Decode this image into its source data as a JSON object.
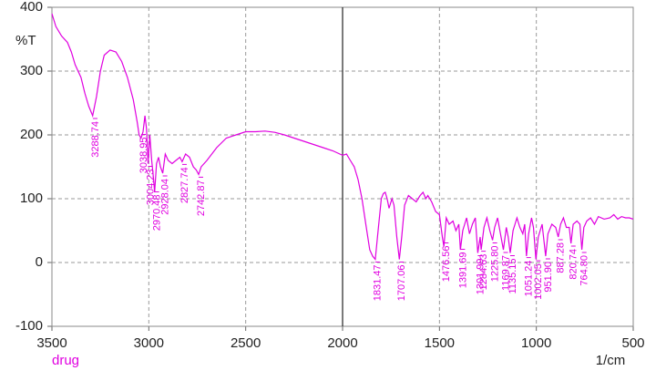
{
  "chart_data": {
    "type": "line",
    "x_label": "1/cm",
    "y_label": "%T",
    "xlim": [
      3500,
      500
    ],
    "ylim": [
      -100,
      400
    ],
    "xticks": [
      3500,
      3000,
      2500,
      2000,
      1500,
      1000,
      500
    ],
    "yticks": [
      400,
      300,
      200,
      100,
      0,
      -100
    ],
    "grid": true,
    "vline": 2000,
    "series": [
      {
        "name": "drug",
        "color": "#e000e0",
        "x": [
          3500,
          3480,
          3450,
          3420,
          3400,
          3380,
          3350,
          3330,
          3310,
          3290,
          3270,
          3250,
          3230,
          3200,
          3170,
          3140,
          3110,
          3080,
          3060,
          3050,
          3040,
          3030,
          3020,
          3012,
          3004,
          2995,
          2985,
          2975,
          2970,
          2960,
          2950,
          2940,
          2928,
          2915,
          2900,
          2880,
          2860,
          2840,
          2828,
          2810,
          2790,
          2770,
          2755,
          2743,
          2730,
          2700,
          2650,
          2600,
          2550,
          2500,
          2450,
          2400,
          2350,
          2300,
          2250,
          2200,
          2150,
          2100,
          2050,
          2000,
          1980,
          1960,
          1940,
          1920,
          1900,
          1880,
          1860,
          1845,
          1831,
          1820,
          1800,
          1790,
          1780,
          1770,
          1760,
          1745,
          1735,
          1720,
          1707,
          1695,
          1680,
          1660,
          1640,
          1620,
          1600,
          1585,
          1570,
          1560,
          1540,
          1520,
          1500,
          1485,
          1477,
          1465,
          1450,
          1430,
          1415,
          1400,
          1392,
          1380,
          1360,
          1345,
          1330,
          1315,
          1302,
          1290,
          1285,
          1270,
          1255,
          1240,
          1226,
          1215,
          1200,
          1185,
          1170,
          1155,
          1145,
          1135,
          1120,
          1100,
          1085,
          1070,
          1060,
          1051,
          1040,
          1025,
          1015,
          1002,
          990,
          970,
          952,
          940,
          920,
          900,
          887,
          875,
          860,
          845,
          830,
          821,
          810,
          790,
          775,
          765,
          755,
          740,
          720,
          700,
          680,
          650,
          620,
          600,
          580,
          560,
          540,
          520,
          500
        ],
        "values": [
          390,
          370,
          355,
          345,
          330,
          310,
          290,
          265,
          245,
          230,
          260,
          300,
          325,
          333,
          330,
          315,
          290,
          255,
          220,
          200,
          195,
          205,
          230,
          210,
          155,
          200,
          160,
          130,
          110,
          155,
          165,
          150,
          140,
          170,
          160,
          155,
          160,
          165,
          158,
          170,
          165,
          150,
          145,
          138,
          150,
          160,
          180,
          195,
          200,
          205,
          205,
          206,
          204,
          200,
          195,
          190,
          185,
          180,
          175,
          168,
          170,
          160,
          150,
          130,
          100,
          60,
          20,
          10,
          5,
          40,
          100,
          108,
          110,
          100,
          85,
          100,
          90,
          40,
          5,
          40,
          90,
          105,
          100,
          95,
          105,
          110,
          100,
          105,
          95,
          80,
          75,
          40,
          25,
          70,
          60,
          65,
          50,
          60,
          20,
          50,
          70,
          45,
          60,
          70,
          15,
          40,
          20,
          55,
          70,
          50,
          35,
          55,
          70,
          45,
          20,
          55,
          40,
          15,
          50,
          70,
          55,
          45,
          60,
          10,
          45,
          70,
          55,
          5,
          40,
          60,
          10,
          45,
          60,
          55,
          40,
          60,
          70,
          55,
          55,
          30,
          60,
          65,
          60,
          20,
          55,
          65,
          70,
          60,
          72,
          68,
          70,
          75,
          68,
          72,
          70,
          70,
          68
        ]
      }
    ],
    "peaks": [
      {
        "x": 3288.74,
        "y": 230,
        "label": "3288.74"
      },
      {
        "x": 3038.95,
        "y": 205,
        "label": "3038.95"
      },
      {
        "x": 3004.23,
        "y": 155,
        "label": "3004.23"
      },
      {
        "x": 2970.48,
        "y": 115,
        "label": "2970.48"
      },
      {
        "x": 2928.04,
        "y": 140,
        "label": "2928.04"
      },
      {
        "x": 2827.74,
        "y": 158,
        "label": "2827.74"
      },
      {
        "x": 2742.87,
        "y": 138,
        "label": "2742.87"
      },
      {
        "x": 1831.47,
        "y": 5,
        "label": "1831.47"
      },
      {
        "x": 1707.06,
        "y": 5,
        "label": "1707.06"
      },
      {
        "x": 1476.56,
        "y": 35,
        "label": "1476.56"
      },
      {
        "x": 1391.69,
        "y": 25,
        "label": "1391.69"
      },
      {
        "x": 1301.99,
        "y": 15,
        "label": "1301.99"
      },
      {
        "x": 1284.63,
        "y": 22,
        "label": "1284.63"
      },
      {
        "x": 1225.8,
        "y": 35,
        "label": "1225.80"
      },
      {
        "x": 1169.87,
        "y": 20,
        "label": "1169.87"
      },
      {
        "x": 1135.15,
        "y": 15,
        "label": "1135.15"
      },
      {
        "x": 1051.24,
        "y": 12,
        "label": "1051.24"
      },
      {
        "x": 1002.05,
        "y": 7,
        "label": "1002.05"
      },
      {
        "x": 951.9,
        "y": 10,
        "label": "951.90"
      },
      {
        "x": 887.28,
        "y": 40,
        "label": "887.28"
      },
      {
        "x": 820.74,
        "y": 30,
        "label": "820.74"
      },
      {
        "x": 764.8,
        "y": 20,
        "label": "764.80"
      }
    ]
  }
}
